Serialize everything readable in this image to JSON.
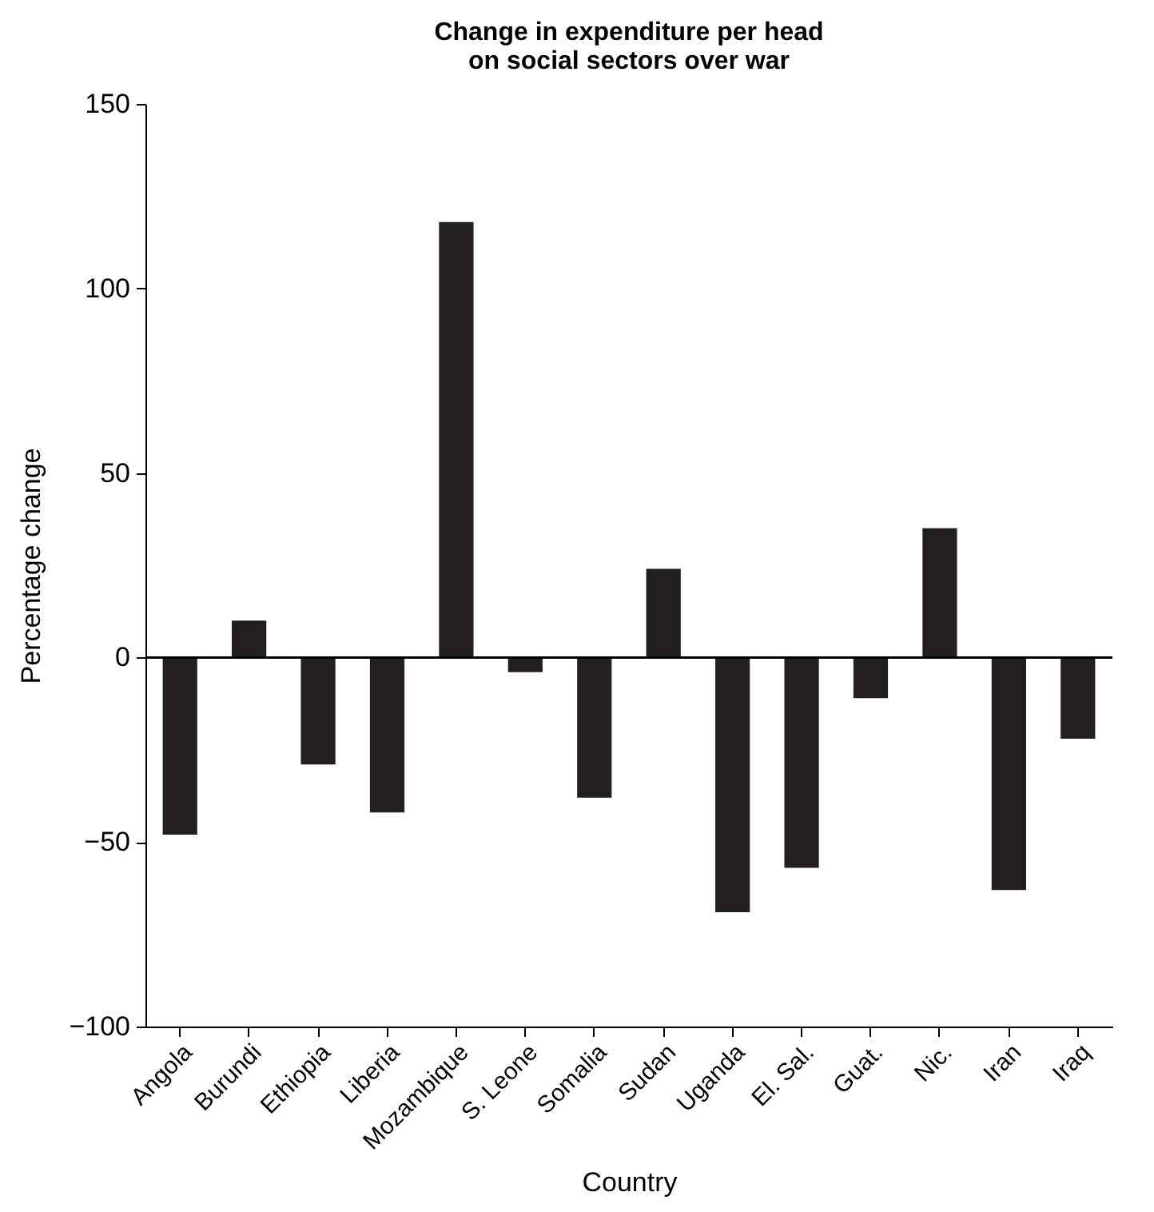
{
  "chart_data": {
    "type": "bar",
    "title": "Change in expenditure per head on social sectors over war",
    "xlabel": "Country",
    "ylabel": "Percentage change",
    "categories": [
      "Angola",
      "Burundi",
      "Ethiopia",
      "Liberia",
      "Mozambique",
      "S. Leone",
      "Somalia",
      "Sudan",
      "Uganda",
      "El. Sal.",
      "Guat.",
      "Nic.",
      "Iran",
      "Iraq"
    ],
    "values": [
      -48,
      10,
      -29,
      -42,
      118,
      -4,
      -38,
      24,
      -69,
      -57,
      -11,
      35,
      -63,
      -22
    ],
    "color": "#231f20",
    "ylim": [
      -100,
      150
    ],
    "yticks": [
      -100,
      -50,
      0,
      50,
      100,
      150
    ],
    "ref_lines": [
      {
        "axis": "y",
        "value": 0,
        "color": "#000000"
      }
    ],
    "grid": false
  }
}
